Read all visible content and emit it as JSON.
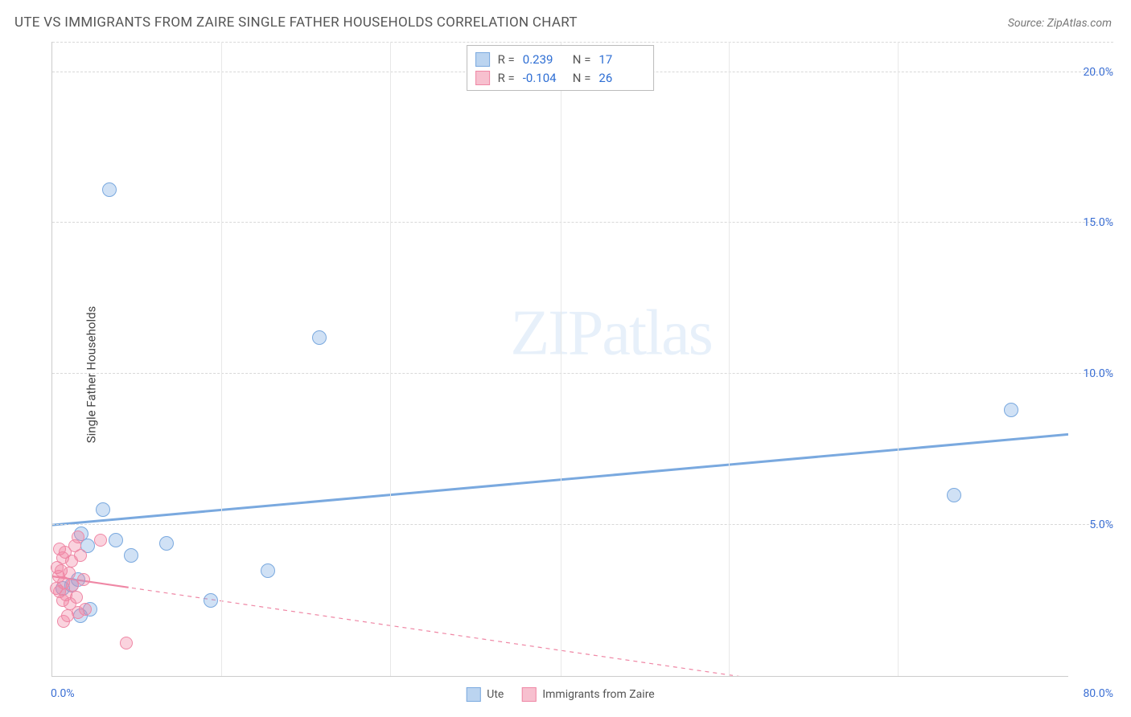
{
  "header": {
    "title": "UTE VS IMMIGRANTS FROM ZAIRE SINGLE FATHER HOUSEHOLDS CORRELATION CHART",
    "source": "Source: ZipAtlas.com"
  },
  "watermark": {
    "zip": "ZIP",
    "atlas": "atlas"
  },
  "chart": {
    "type": "scatter",
    "y_axis_title": "Single Father Households",
    "x_domain": [
      0,
      80
    ],
    "y_domain": [
      0,
      21
    ],
    "x_ticks": [
      {
        "value": 0,
        "label": "0.0%",
        "pos": "left"
      },
      {
        "value": 80,
        "label": "80.0%",
        "pos": "right"
      }
    ],
    "y_ticks": [
      {
        "value": 5,
        "label": "5.0%"
      },
      {
        "value": 10,
        "label": "10.0%"
      },
      {
        "value": 15,
        "label": "15.0%"
      },
      {
        "value": 20,
        "label": "20.0%"
      }
    ],
    "x_gridlines": [
      13.3,
      26.6,
      40,
      53.3,
      66.6
    ],
    "series": [
      {
        "name": "Ute",
        "class": "blue",
        "color": "#7aa9df",
        "r": 0.239,
        "n": 17,
        "trend": {
          "y_at_x0": 5.0,
          "y_at_xmax": 8.0,
          "width": 3,
          "dash": "none"
        },
        "points": [
          {
            "x": 4.5,
            "y": 16.1
          },
          {
            "x": 21.0,
            "y": 11.2
          },
          {
            "x": 75.5,
            "y": 8.8
          },
          {
            "x": 71.0,
            "y": 6.0
          },
          {
            "x": 4.0,
            "y": 5.5
          },
          {
            "x": 2.3,
            "y": 4.7
          },
          {
            "x": 5.0,
            "y": 4.5
          },
          {
            "x": 9.0,
            "y": 4.4
          },
          {
            "x": 2.8,
            "y": 4.3
          },
          {
            "x": 6.2,
            "y": 4.0
          },
          {
            "x": 17.0,
            "y": 3.5
          },
          {
            "x": 2.0,
            "y": 3.2
          },
          {
            "x": 1.5,
            "y": 3.0
          },
          {
            "x": 0.8,
            "y": 2.9
          },
          {
            "x": 12.5,
            "y": 2.5
          },
          {
            "x": 3.0,
            "y": 2.2
          },
          {
            "x": 2.2,
            "y": 2.0
          }
        ]
      },
      {
        "name": "Immigrants from Zaire",
        "class": "pink",
        "color": "#ef87a5",
        "r": -0.104,
        "n": 26,
        "trend": {
          "y_at_x0": 3.3,
          "y_at_xmax": -1.6,
          "width": 1.2,
          "dash": "5,5"
        },
        "points": [
          {
            "x": 2.0,
            "y": 4.6
          },
          {
            "x": 3.8,
            "y": 4.5
          },
          {
            "x": 1.8,
            "y": 4.3
          },
          {
            "x": 0.6,
            "y": 4.2
          },
          {
            "x": 1.0,
            "y": 4.1
          },
          {
            "x": 2.2,
            "y": 4.0
          },
          {
            "x": 0.8,
            "y": 3.9
          },
          {
            "x": 1.5,
            "y": 3.8
          },
          {
            "x": 0.4,
            "y": 3.6
          },
          {
            "x": 0.7,
            "y": 3.5
          },
          {
            "x": 1.3,
            "y": 3.4
          },
          {
            "x": 0.5,
            "y": 3.3
          },
          {
            "x": 2.5,
            "y": 3.2
          },
          {
            "x": 0.9,
            "y": 3.1
          },
          {
            "x": 1.6,
            "y": 3.0
          },
          {
            "x": 0.3,
            "y": 2.9
          },
          {
            "x": 0.6,
            "y": 2.8
          },
          {
            "x": 1.1,
            "y": 2.7
          },
          {
            "x": 1.9,
            "y": 2.6
          },
          {
            "x": 0.8,
            "y": 2.5
          },
          {
            "x": 1.4,
            "y": 2.4
          },
          {
            "x": 2.6,
            "y": 2.2
          },
          {
            "x": 2.0,
            "y": 2.1
          },
          {
            "x": 1.2,
            "y": 2.0
          },
          {
            "x": 0.9,
            "y": 1.8
          },
          {
            "x": 5.8,
            "y": 1.1
          }
        ]
      }
    ]
  },
  "legend_top": {
    "r_label": "R  =",
    "n_label": "N  ="
  }
}
